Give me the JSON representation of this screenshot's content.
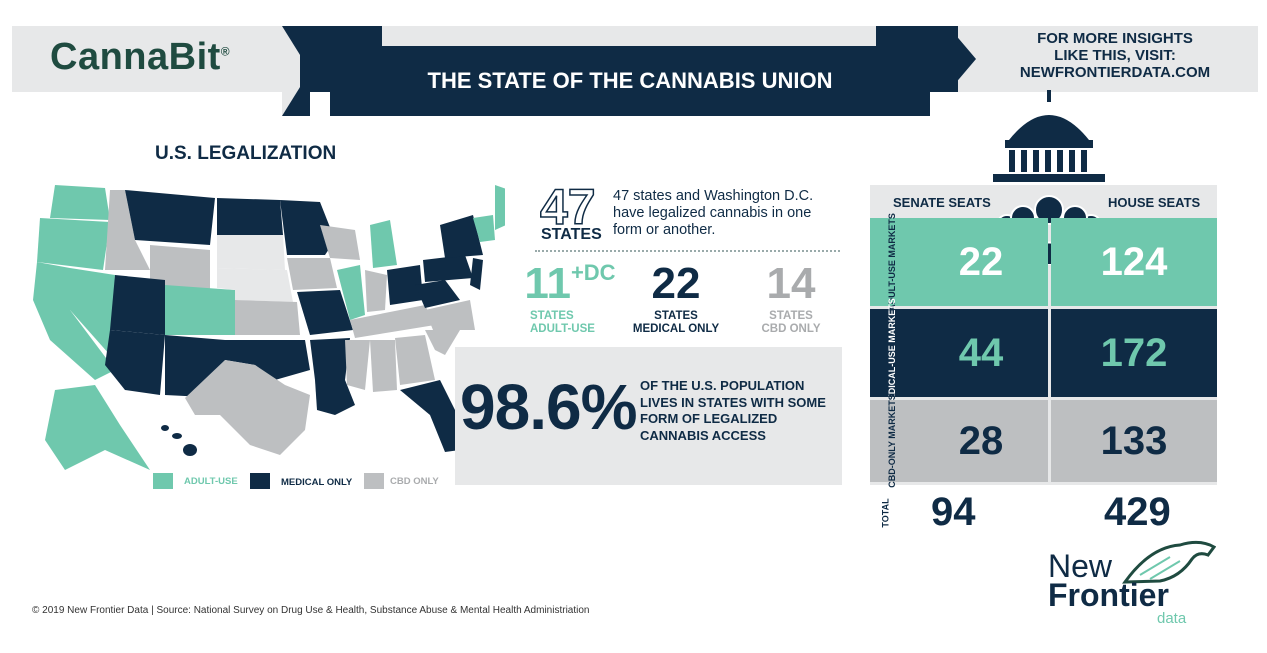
{
  "header": {
    "logo": "CannaBit",
    "logo_mark": "®",
    "title": "THE STATE OF THE CANNABIS UNION",
    "visit_line1": "FOR MORE INSIGHTS",
    "visit_line2": "LIKE THIS, VISIT:",
    "visit_line3": "NEWFRONTIERDATA.COM"
  },
  "legalization": {
    "heading": "U.S. LEGALIZATION",
    "states_total": "47",
    "states_word": "STATES",
    "states_desc": "47 states and Washington D.C. have legalized cannabis in one form or another.",
    "adult_use": {
      "value": "11",
      "suffix": "+DC",
      "line1": "STATES",
      "line2": "ADULT-USE"
    },
    "medical_only": {
      "value": "22",
      "line1": "STATES",
      "line2": "MEDICAL ONLY"
    },
    "cbd_only": {
      "value": "14",
      "line1": "STATES",
      "line2": "CBD ONLY"
    },
    "population_pct": "98.6%",
    "population_text": "OF THE U.S. POPULATION LIVES IN STATES WITH SOME FORM OF LEGALIZED CANNABIS ACCESS"
  },
  "legend": {
    "adult_use": "ADULT-USE",
    "medical_only": "MEDICAL ONLY",
    "cbd_only": "CBD ONLY"
  },
  "congress": {
    "senate_header": "SENATE SEATS",
    "house_header": "HOUSE SEATS",
    "rows": [
      {
        "label": "ADULT-USE MARKETS",
        "senate": "22",
        "house": "124"
      },
      {
        "label": "MEDICAL-USE MARKETS",
        "senate": "44",
        "house": "172"
      },
      {
        "label": "CBD-ONLY MARKETS",
        "senate": "28",
        "house": "133"
      }
    ],
    "total_label": "TOTAL",
    "total_senate": "94",
    "total_house": "429"
  },
  "brand": {
    "line1": "New",
    "line2": "Frontier",
    "line3": "data"
  },
  "footer": "© 2019  New Frontier Data | Source: National Survey on Drug Use & Health, Substance Abuse & Mental Health Administriation",
  "colors": {
    "navy": "#0f2b45",
    "teal": "#6fc8ad",
    "gray": "#bdbfc1",
    "band": "#e7e8e9"
  }
}
